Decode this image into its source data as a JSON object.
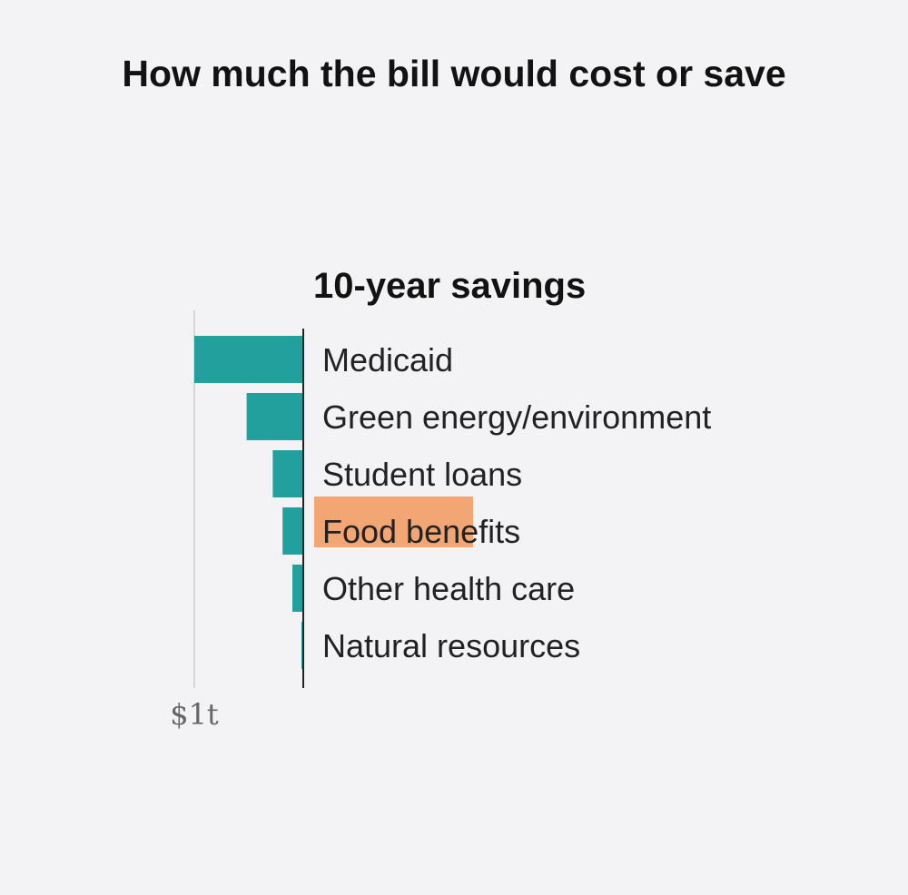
{
  "header": {
    "title": "How much the bill would cost or save"
  },
  "chart_data": {
    "type": "bar",
    "orientation": "horizontal",
    "direction": "leftward",
    "subtitle": "10-year savings",
    "categories": [
      "Medicaid",
      "Green energy/environment",
      "Student loans",
      "Food benefits",
      "Other health care",
      "Natural resources"
    ],
    "series": [
      {
        "values": [
          1.0,
          0.52,
          0.28,
          0.19,
          0.1,
          0.015
        ]
      }
    ],
    "units": "trillions of dollars",
    "xlim": [
      0,
      1
    ],
    "ticks": [
      {
        "value": 1,
        "label": "$1t"
      }
    ],
    "highlighted_category": "Food benefits",
    "colors": {
      "bar": "#22a09e",
      "highlight": "#f2a673",
      "axis": "#222222",
      "reference_line": "#cccccc",
      "background": "#f3f3f5"
    }
  }
}
